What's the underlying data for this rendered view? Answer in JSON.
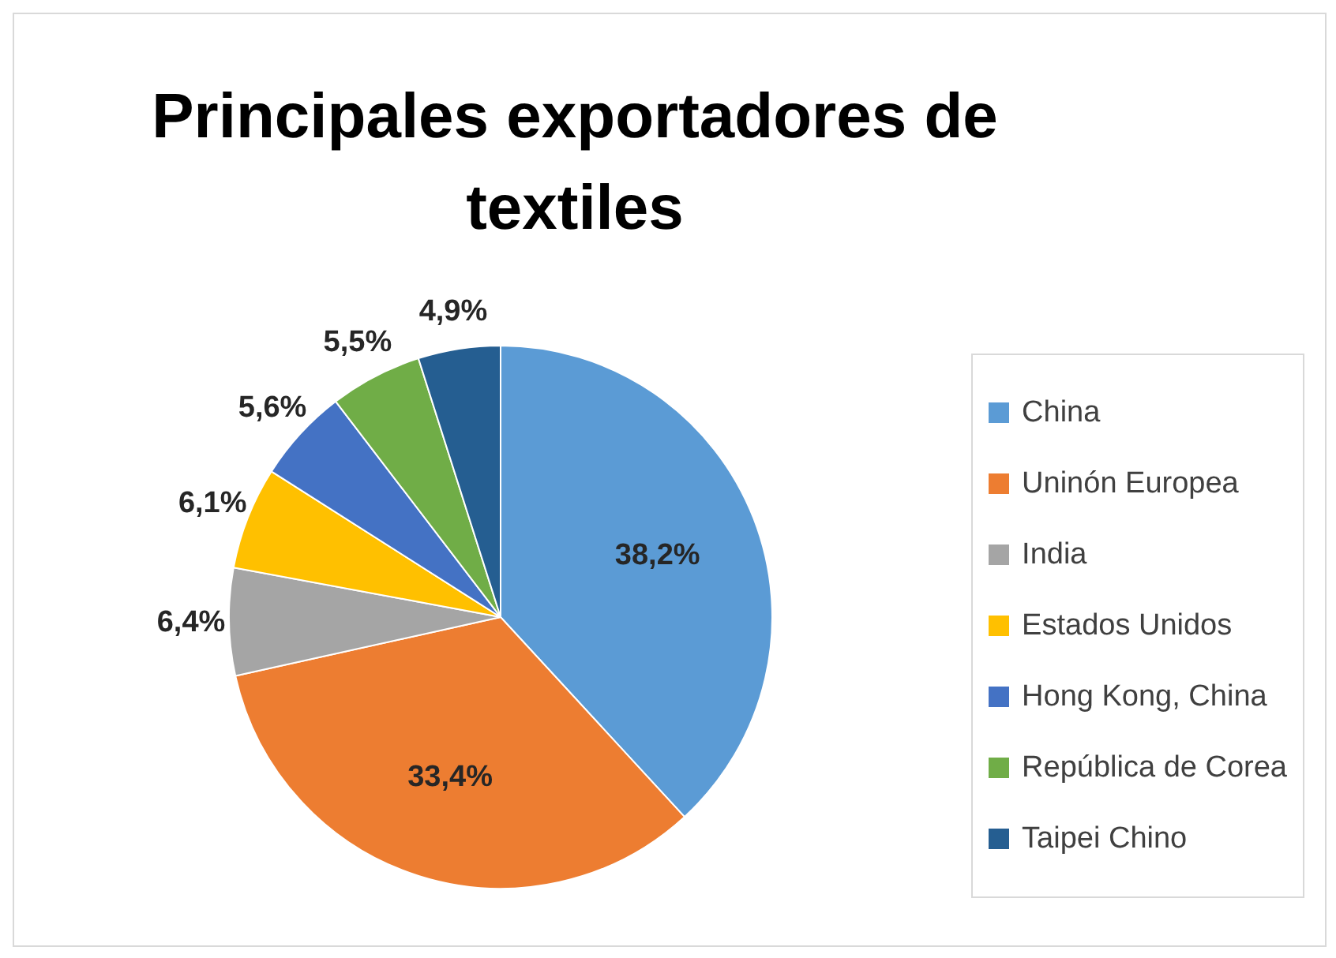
{
  "chart_data": {
    "type": "pie",
    "title": "Principales exportadores de textiles",
    "categories": [
      "China",
      "Uninón Europea",
      "India",
      "Estados Unidos",
      "Hong Kong, China",
      "República de Corea",
      "Taipei Chino"
    ],
    "values": [
      38.2,
      33.4,
      6.4,
      6.1,
      5.6,
      5.5,
      4.9
    ],
    "colors": [
      "#5b9bd5",
      "#ed7d31",
      "#a5a5a5",
      "#ffc000",
      "#4472c4",
      "#70ad47",
      "#255e91"
    ],
    "value_labels": [
      "38,2%",
      "33,4%",
      "6,4%",
      "6,1%",
      "5,6%",
      "5,5%",
      "4,9%"
    ],
    "legend": "right"
  }
}
